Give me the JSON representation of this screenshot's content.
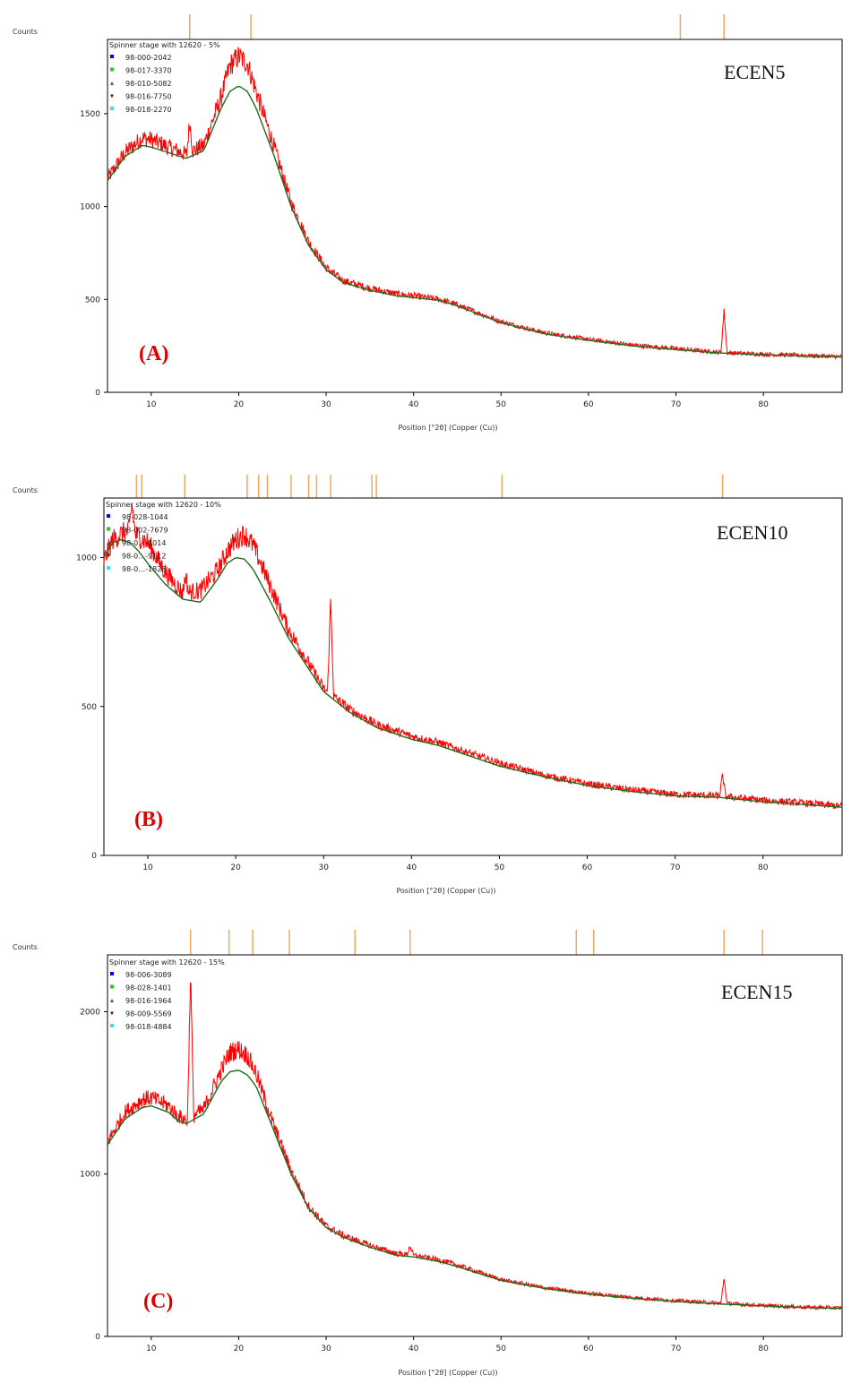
{
  "colors": {
    "measured": "#ff0000",
    "calculated": "#1f6b1f",
    "reference_tick": "#f0a860",
    "panel_letter": "#e00000",
    "legend_marker_colors": [
      "#0000ff",
      "#22cc22",
      "#555555",
      "#7a1010",
      "#44dddd"
    ]
  },
  "chart_data": [
    {
      "type": "line",
      "ylabel": "Counts",
      "xlabel": "Position [°2θ] (Copper (Cu))",
      "xlim": [
        5,
        89
      ],
      "ylim": [
        0,
        1900
      ],
      "x_ticks": [
        10,
        20,
        30,
        40,
        50,
        60,
        70,
        80
      ],
      "y_ticks": [
        0,
        500,
        1000,
        1500
      ],
      "legend_title": "Spinner stage with 12620 - 5%",
      "legend_items": [
        "98-000-2042",
        "98-017-3370",
        "98-010-5082",
        "98-016-7750",
        "98-018-2270"
      ],
      "sample_label": "ECEN5",
      "panel_letter": "(A)",
      "reference_peaks": [
        14.4,
        21.4,
        70.5,
        75.5
      ],
      "series": [
        {
          "name": "measured",
          "x": [
            5,
            7,
            9,
            10,
            12,
            14,
            16,
            18,
            19,
            20,
            21,
            22,
            24,
            26,
            28,
            30,
            32,
            35,
            38,
            40,
            43,
            45,
            50,
            55,
            60,
            65,
            70,
            75,
            80,
            85,
            89
          ],
          "y": [
            1150,
            1290,
            1370,
            1360,
            1320,
            1280,
            1330,
            1590,
            1760,
            1810,
            1770,
            1620,
            1330,
            1020,
            810,
            670,
            600,
            560,
            530,
            520,
            500,
            470,
            380,
            320,
            285,
            255,
            235,
            215,
            205,
            198,
            192
          ]
        },
        {
          "name": "calculated",
          "x": [
            5,
            7,
            9,
            10,
            12,
            14,
            16,
            18,
            19,
            20,
            21,
            22,
            24,
            26,
            28,
            30,
            32,
            35,
            38,
            40,
            43,
            45,
            50,
            55,
            60,
            65,
            70,
            75,
            80,
            85,
            89
          ],
          "y": [
            1140,
            1270,
            1330,
            1320,
            1290,
            1260,
            1300,
            1530,
            1620,
            1650,
            1620,
            1530,
            1280,
            1000,
            790,
            660,
            590,
            550,
            520,
            510,
            495,
            465,
            375,
            315,
            280,
            250,
            230,
            212,
            202,
            195,
            190
          ]
        }
      ],
      "sharp_peaks": [
        {
          "x": 14.4,
          "y": 1460
        },
        {
          "x": 75.5,
          "y": 440
        }
      ]
    },
    {
      "type": "line",
      "ylabel": "Counts",
      "xlabel": "Position [°2θ] (Copper (Cu))",
      "xlim": [
        5,
        89
      ],
      "ylim": [
        0,
        1200
      ],
      "x_ticks": [
        10,
        20,
        30,
        40,
        50,
        60,
        70,
        80
      ],
      "y_ticks": [
        0,
        500,
        1000
      ],
      "legend_title": "Spinner stage with 12620 - 10%",
      "legend_items": [
        "98-028-1044",
        "98-002-7679",
        "98-0…-3014",
        "98-0…-9112",
        "98-0…-1828"
      ],
      "sample_label": "ECEN10",
      "panel_letter": "(B)",
      "reference_peaks": [
        8.7,
        9.3,
        14.2,
        21.3,
        22.6,
        23.6,
        26.3,
        28.3,
        29.2,
        30.8,
        35.5,
        36.0,
        50.3,
        75.4
      ],
      "series": [
        {
          "name": "measured",
          "x": [
            5,
            6,
            7,
            8,
            9,
            10,
            12,
            14,
            16,
            18,
            19,
            20,
            21,
            22,
            24,
            26,
            28,
            30,
            33,
            36,
            40,
            43,
            45,
            50,
            55,
            60,
            65,
            70,
            75,
            80,
            85,
            89
          ],
          "y": [
            990,
            1060,
            1080,
            1090,
            1070,
            1050,
            950,
            880,
            890,
            960,
            1020,
            1060,
            1080,
            1040,
            900,
            760,
            660,
            560,
            490,
            440,
            400,
            380,
            360,
            310,
            270,
            240,
            220,
            205,
            200,
            185,
            175,
            165
          ]
        },
        {
          "name": "calculated",
          "x": [
            5,
            6,
            7,
            8,
            9,
            10,
            12,
            14,
            16,
            18,
            19,
            20,
            21,
            22,
            24,
            26,
            28,
            30,
            33,
            36,
            40,
            43,
            45,
            50,
            55,
            60,
            65,
            70,
            75,
            80,
            85,
            89
          ],
          "y": [
            1000,
            1050,
            1060,
            1050,
            1020,
            980,
            910,
            860,
            850,
            930,
            980,
            1000,
            995,
            960,
            850,
            730,
            640,
            550,
            480,
            430,
            390,
            370,
            350,
            300,
            265,
            235,
            215,
            200,
            195,
            180,
            170,
            162
          ]
        }
      ],
      "sharp_peaks": [
        {
          "x": 14.3,
          "y": 940
        },
        {
          "x": 30.8,
          "y": 860
        },
        {
          "x": 8.2,
          "y": 1180
        },
        {
          "x": 75.4,
          "y": 270
        }
      ]
    },
    {
      "type": "line",
      "ylabel": "Counts",
      "xlabel": "Position [°2θ] (Copper (Cu))",
      "xlim": [
        5,
        89
      ],
      "ylim": [
        0,
        2350
      ],
      "x_ticks": [
        10,
        20,
        30,
        40,
        50,
        60,
        70,
        80
      ],
      "y_ticks": [
        0,
        1000,
        2000
      ],
      "legend_title": "Spinner stage with 12620 - 15%",
      "legend_items": [
        "98-006-3089",
        "98-028-1401",
        "98-016-1964",
        "98-009-5569",
        "98-018-4884"
      ],
      "sample_label": "ECEN15",
      "panel_letter": "(C)",
      "reference_peaks": [
        14.5,
        18.9,
        21.6,
        25.8,
        33.3,
        39.6,
        58.6,
        60.6,
        75.5,
        79.9
      ],
      "series": [
        {
          "name": "measured",
          "x": [
            5,
            7,
            9,
            10,
            12,
            13,
            14,
            16,
            18,
            19,
            20,
            21,
            22,
            24,
            26,
            28,
            30,
            32,
            35,
            38,
            40,
            43,
            45,
            50,
            55,
            60,
            65,
            70,
            75,
            80,
            85,
            89
          ],
          "y": [
            1200,
            1380,
            1460,
            1470,
            1420,
            1360,
            1330,
            1400,
            1640,
            1750,
            1770,
            1730,
            1620,
            1300,
            1020,
            800,
            680,
            620,
            560,
            510,
            500,
            470,
            440,
            350,
            300,
            265,
            240,
            220,
            205,
            190,
            180,
            175
          ]
        },
        {
          "name": "calculated",
          "x": [
            5,
            7,
            9,
            10,
            12,
            13,
            14,
            16,
            18,
            19,
            20,
            21,
            22,
            24,
            26,
            28,
            30,
            32,
            35,
            38,
            40,
            43,
            45,
            50,
            55,
            60,
            65,
            70,
            75,
            80,
            85,
            89
          ],
          "y": [
            1180,
            1340,
            1410,
            1420,
            1380,
            1330,
            1310,
            1370,
            1570,
            1630,
            1640,
            1610,
            1540,
            1270,
            1000,
            790,
            670,
            610,
            550,
            500,
            490,
            460,
            430,
            345,
            295,
            260,
            235,
            215,
            200,
            188,
            178,
            172
          ]
        }
      ],
      "sharp_peaks": [
        {
          "x": 14.5,
          "y": 2250
        },
        {
          "x": 39.6,
          "y": 560
        },
        {
          "x": 75.5,
          "y": 360
        }
      ]
    }
  ]
}
